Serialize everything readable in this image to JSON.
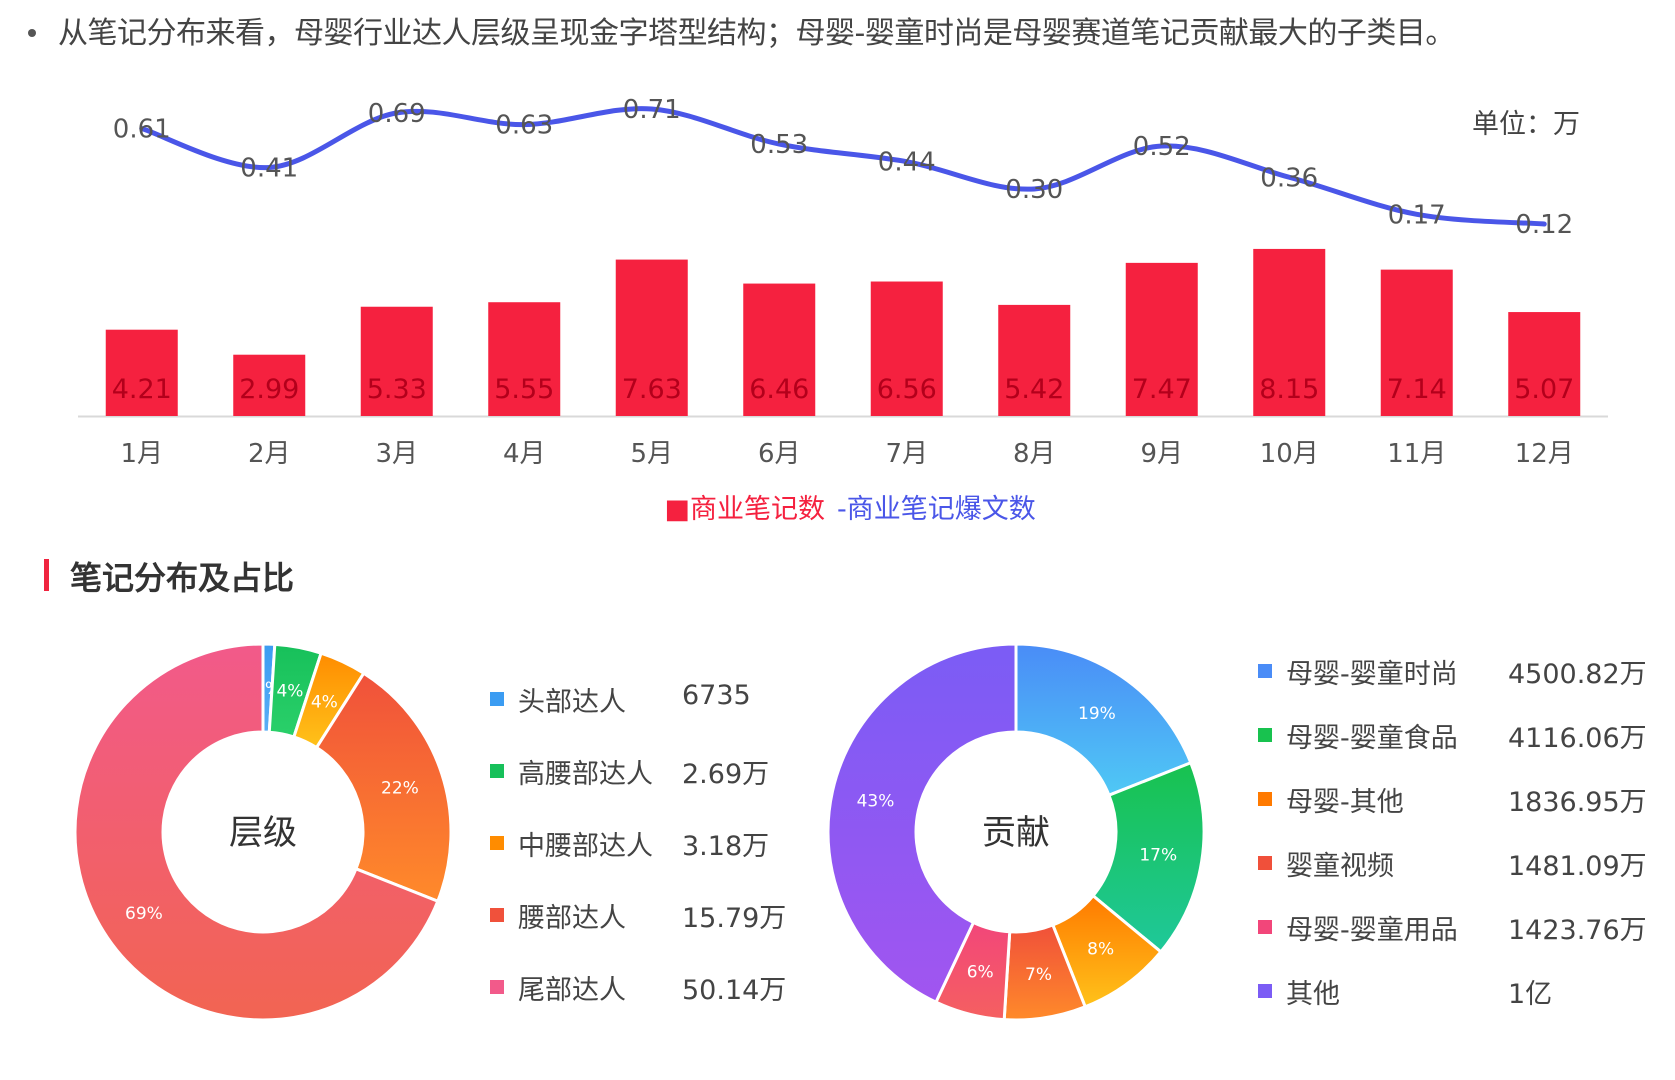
{
  "headline": "从笔记分布来看，母婴行业达人层级呈现金字塔型结构；母婴-婴童时尚是母婴赛道笔记贡献最大的子类目。",
  "chart_data": [
    {
      "type": "bar+line",
      "unit_label": "单位：万",
      "categories": [
        "1月",
        "2月",
        "3月",
        "4月",
        "5月",
        "6月",
        "7月",
        "8月",
        "9月",
        "10月",
        "11月",
        "12月"
      ],
      "series": [
        {
          "name": "■商业笔记数",
          "kind": "bar",
          "color": "#f5213f",
          "values": [
            4.21,
            2.99,
            5.33,
            5.55,
            7.63,
            6.46,
            6.56,
            5.42,
            7.47,
            8.15,
            7.14,
            5.07
          ],
          "labels": [
            "4.21",
            "2.99",
            "5.33",
            "5.55",
            "7.63",
            "6.46",
            "6.56",
            "5.42",
            "7.47",
            "8.15",
            "7.14",
            "5.07"
          ]
        },
        {
          "name": "-商业笔记爆文数",
          "kind": "line",
          "color": "#4a56e8",
          "values": [
            0.61,
            0.41,
            0.69,
            0.63,
            0.71,
            0.53,
            0.44,
            0.3,
            0.52,
            0.36,
            0.17,
            0.12
          ],
          "labels": [
            "0.61",
            "0.41",
            "0.69",
            "0.63",
            "0.71",
            "0.53",
            "0.44",
            "0.30",
            "0.52",
            "0.36",
            "0.17",
            "0.12"
          ]
        }
      ]
    },
    {
      "type": "pie",
      "center_label": "层级",
      "slices": [
        {
          "name": "头部达人",
          "value_text": "6735",
          "percent": 1,
          "label": "1%",
          "color": "#3b9cf2",
          "color2": "#5aaef5"
        },
        {
          "name": "高腰部达人",
          "value_text": "2.69万",
          "percent": 4,
          "label": "4%",
          "color": "#17c05a",
          "color2": "#2ad06a"
        },
        {
          "name": "中腰部达人",
          "value_text": "3.18万",
          "percent": 4,
          "label": "4%",
          "color": "#ff8c00",
          "color2": "#ffc21a"
        },
        {
          "name": "腰部达人",
          "value_text": "15.79万",
          "percent": 22,
          "label": "22%",
          "color": "#f0513b",
          "color2": "#ff8a2a"
        },
        {
          "name": "尾部达人",
          "value_text": "50.14万",
          "percent": 69,
          "label": "69%",
          "color": "#f25a8a",
          "color2": "#f26452"
        }
      ]
    },
    {
      "type": "pie",
      "center_label": "贡献",
      "slices": [
        {
          "name": "母婴-婴童时尚",
          "value_text": "4500.82万",
          "percent": 19,
          "label": "19%",
          "color": "#4a8cf7",
          "color2": "#4fc8f5"
        },
        {
          "name": "母婴-婴童食品",
          "value_text": "4116.06万",
          "percent": 17,
          "label": "17%",
          "color": "#18c24f",
          "color2": "#1fc89a"
        },
        {
          "name": "母婴-其他",
          "value_text": "1836.95万",
          "percent": 8,
          "label": "8%",
          "color": "#ff7a00",
          "color2": "#ffc21a"
        },
        {
          "name": "婴童视频",
          "value_text": "1481.09万",
          "percent": 7,
          "label": "7%",
          "color": "#f0503a",
          "color2": "#ff8a2a"
        },
        {
          "name": "母婴-婴童用品",
          "value_text": "1423.76万",
          "percent": 6,
          "label": "6%",
          "color": "#f2467a",
          "color2": "#f56060"
        },
        {
          "name": "其他",
          "value_text": "1亿",
          "percent": 43,
          "label": "43%",
          "color": "#7b5cf5",
          "color2": "#a155f0"
        }
      ]
    }
  ],
  "section_title": "笔记分布及占比"
}
